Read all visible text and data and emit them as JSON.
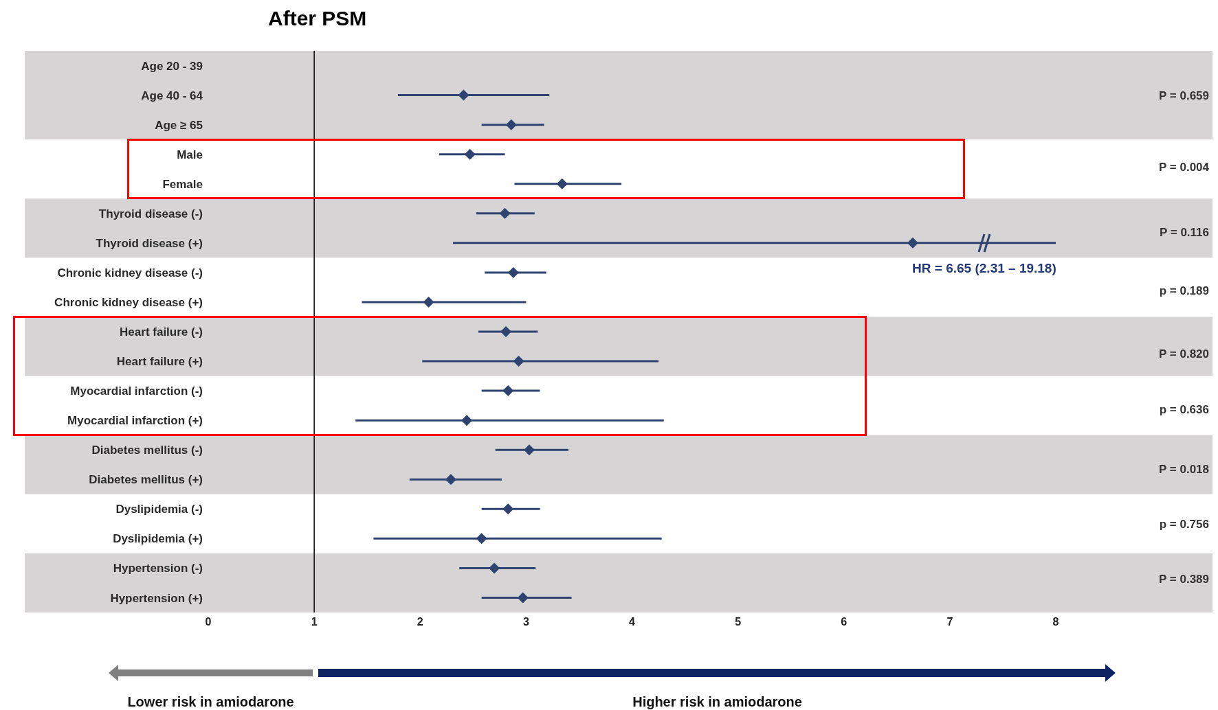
{
  "chart_data": {
    "type": "scatter",
    "orientation": "horizontal",
    "title": "After PSM",
    "categories": [
      "Age 20 - 39",
      "Age 40 - 64",
      "Age ≥ 65",
      "Male",
      "Female",
      "Thyroid disease (-)",
      "Thyroid disease (+)",
      "Chronic kidney disease (-)",
      "Chronic kidney disease (+)",
      "Heart failure (-)",
      "Heart failure (+)",
      "Myocardial infarction (-)",
      "Myocardial infarction (+)",
      "Diabetes mellitus (-)",
      "Diabetes mellitus (+)",
      "Dyslipidemia (-)",
      "Dyslipidemia (+)",
      "Hypertension (-)",
      "Hypertension (+)"
    ],
    "series": [
      {
        "color": "#2e4370",
        "values": [
          null,
          2.41,
          2.86,
          2.47,
          3.34,
          2.8,
          6.65,
          2.88,
          2.08,
          2.81,
          2.93,
          2.83,
          2.44,
          3.03,
          2.29,
          2.83,
          2.58,
          2.7,
          2.97
        ],
        "errors": [
          null,
          [
            1.79,
            3.22
          ],
          [
            2.58,
            3.17
          ],
          [
            2.18,
            2.8
          ],
          [
            2.89,
            3.9
          ],
          [
            2.53,
            3.08
          ],
          [
            2.31,
            8
          ],
          [
            2.61,
            3.19
          ],
          [
            1.45,
            3.0
          ],
          [
            2.55,
            3.11
          ],
          [
            2.02,
            4.25
          ],
          [
            2.58,
            3.13
          ],
          [
            1.39,
            4.3
          ],
          [
            2.71,
            3.4
          ],
          [
            1.9,
            2.77
          ],
          [
            2.58,
            3.13
          ],
          [
            1.56,
            4.28
          ],
          [
            2.37,
            3.09
          ],
          [
            2.58,
            3.43
          ]
        ]
      }
    ],
    "xlim": [
      0,
      8
    ],
    "xticks": [
      0,
      1,
      2,
      3,
      4,
      5,
      6,
      7,
      8
    ],
    "marker": "diamond",
    "ref_lines": [
      {
        "axis": "x",
        "value": 1,
        "color": "#000000"
      }
    ],
    "bands": [
      {
        "axis": "y",
        "from": "Age 20 - 39",
        "to": "Age ≥ 65",
        "color": "#d6d4d5"
      },
      {
        "axis": "y",
        "from": "Thyroid disease (-)",
        "to": "Thyroid disease (+)",
        "color": "#d6d4d5"
      },
      {
        "axis": "y",
        "from": "Heart failure (-)",
        "to": "Heart failure (+)",
        "color": "#d6d4d5"
      },
      {
        "axis": "y",
        "from": "Diabetes mellitus (-)",
        "to": "Diabetes mellitus (+)",
        "color": "#d6d4d5"
      },
      {
        "axis": "y",
        "from": "Hypertension (-)",
        "to": "Hypertension (+)",
        "color": "#d6d4d5"
      }
    ],
    "annotations": [
      {
        "text": "HR = 6.65 (2.31 – 19.18)",
        "x": 6.65,
        "y": "Thyroid disease (+)"
      },
      "P = 0.659",
      "P = 0.004",
      "P = 0.116",
      "p = 0.189",
      "P = 0.820",
      "p = 0.636",
      "P = 0.018",
      "p = 0.756",
      "P = 0.389",
      "Lower risk in amiodarone",
      "Higher risk in amiodarone"
    ]
  }
}
